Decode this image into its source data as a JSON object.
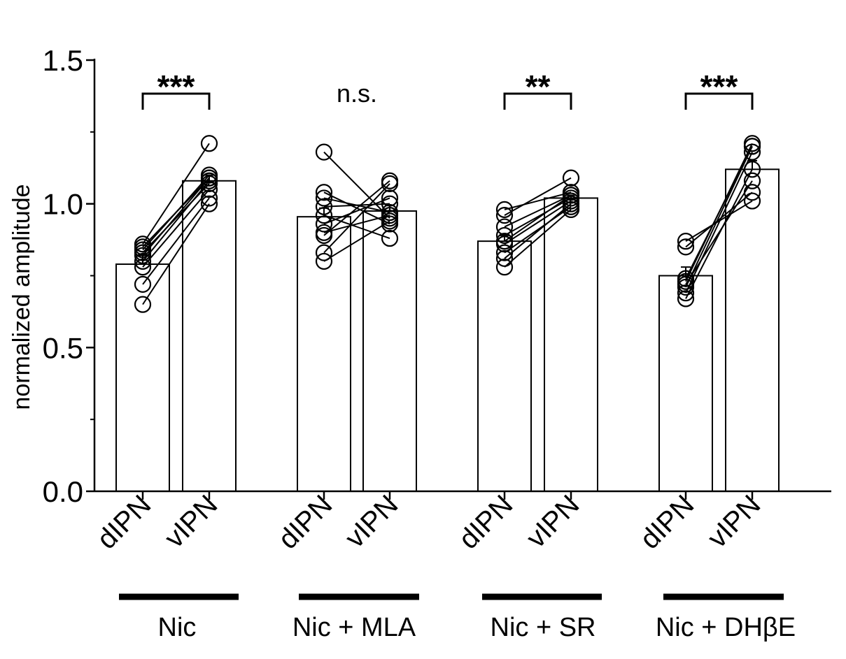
{
  "chart_data": {
    "type": "bar",
    "ylabel": "normalized amplitude",
    "ylim": [
      0,
      1.5
    ],
    "yticks": [
      {
        "value": 0.0,
        "label": "0.0"
      },
      {
        "value": 0.5,
        "label": "0.5"
      },
      {
        "value": 1.0,
        "label": "1.0"
      },
      {
        "value": 1.5,
        "label": "1.5"
      }
    ],
    "grid": false,
    "bar_fill": "#ffffff",
    "stroke_color": "#000000",
    "groups": [
      {
        "label": "Nic",
        "significance": "***",
        "bracket": true,
        "bars": [
          {
            "category": "dIPN",
            "mean": 0.79,
            "error": 0.03
          },
          {
            "category": "vIPN",
            "mean": 1.08,
            "error": 0.02
          }
        ],
        "pairs": [
          [
            0.86,
            1.21
          ],
          [
            0.84,
            1.1
          ],
          [
            0.82,
            1.09
          ],
          [
            0.8,
            1.08
          ],
          [
            0.83,
            1.07
          ],
          [
            0.78,
            1.05
          ],
          [
            0.72,
            1.02
          ],
          [
            0.65,
            1.0
          ],
          [
            0.85,
            1.09
          ]
        ]
      },
      {
        "label": "Nic + MLA",
        "significance": "n.s.",
        "bracket": false,
        "bars": [
          {
            "category": "dIPN",
            "mean": 0.955,
            "error": 0.03
          },
          {
            "category": "vIPN",
            "mean": 0.975,
            "error": 0.02
          }
        ],
        "pairs": [
          [
            1.18,
            0.95
          ],
          [
            1.04,
            0.93
          ],
          [
            1.02,
            0.97
          ],
          [
            0.99,
            1.0
          ],
          [
            0.93,
            1.02
          ],
          [
            0.9,
            0.96
          ],
          [
            0.89,
            1.08
          ],
          [
            0.83,
            1.07
          ],
          [
            0.8,
            0.94
          ],
          [
            0.96,
            0.88
          ]
        ]
      },
      {
        "label": "Nic + SR",
        "significance": "**",
        "bracket": true,
        "bars": [
          {
            "category": "dIPN",
            "mean": 0.87,
            "error": 0.02
          },
          {
            "category": "vIPN",
            "mean": 1.02,
            "error": 0.01
          }
        ],
        "pairs": [
          [
            0.98,
            1.04
          ],
          [
            0.96,
            1.09
          ],
          [
            0.92,
            1.03
          ],
          [
            0.89,
            1.02
          ],
          [
            0.86,
            1.01
          ],
          [
            0.83,
            0.99
          ],
          [
            0.81,
            1.0
          ],
          [
            0.78,
            0.98
          ],
          [
            0.87,
            1.03
          ]
        ]
      },
      {
        "label": "Nic + DHβE",
        "significance": "***",
        "bracket": true,
        "bars": [
          {
            "category": "dIPN",
            "mean": 0.75,
            "error": 0.03
          },
          {
            "category": "vIPN",
            "mean": 1.12,
            "error": 0.03
          }
        ],
        "pairs": [
          [
            0.87,
            1.01
          ],
          [
            0.85,
            1.04
          ],
          [
            0.73,
            1.21
          ],
          [
            0.71,
            1.2
          ],
          [
            0.69,
            1.18
          ],
          [
            0.67,
            1.12
          ],
          [
            0.72,
            1.08
          ],
          [
            0.74,
            1.2
          ]
        ]
      }
    ]
  }
}
